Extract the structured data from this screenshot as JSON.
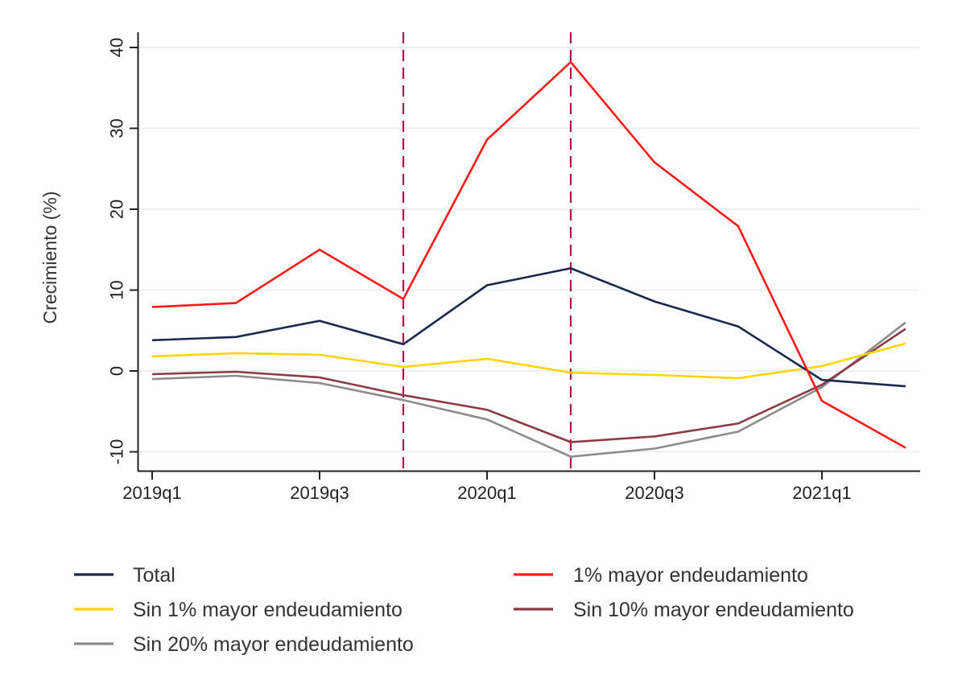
{
  "chart_data": {
    "type": "line",
    "title": "",
    "xlabel": "",
    "ylabel": "Crecimiento (%)",
    "x": [
      "2019q1",
      "2019q2",
      "2019q3",
      "2019q4",
      "2020q1",
      "2020q2",
      "2020q3",
      "2020q4",
      "2021q1",
      "2021q2"
    ],
    "x_tick_labels": [
      "2019q1",
      "2019q3",
      "2020q1",
      "2020q3",
      "2021q1"
    ],
    "y_ticks": [
      -10,
      0,
      10,
      20,
      30,
      40
    ],
    "ylim": [
      -12.4,
      41.7
    ],
    "grid": true,
    "vertical_reference_lines": {
      "at": [
        "2019q4",
        "2020q2"
      ],
      "style": "dashed",
      "color": "#b0164a"
    },
    "legend_position": "bottom",
    "series": [
      {
        "name": "Total",
        "color": "#1a2a4f",
        "values": [
          3.8,
          4.2,
          6.2,
          3.3,
          10.6,
          12.7,
          8.6,
          5.5,
          -1.1,
          -1.9
        ]
      },
      {
        "name": "1% mayor endeudamiento",
        "color": "#ff1a1a",
        "values": [
          7.9,
          8.4,
          15.0,
          8.9,
          28.6,
          38.2,
          25.8,
          17.9,
          -3.7,
          -9.5
        ]
      },
      {
        "name": "Sin 1% mayor endeudamiento",
        "color": "#ffd400",
        "values": [
          1.8,
          2.2,
          2.0,
          0.5,
          1.5,
          -0.2,
          -0.5,
          -0.9,
          0.6,
          3.4
        ]
      },
      {
        "name": "Sin 10% mayor endeudamiento",
        "color": "#8b3a46",
        "values": [
          -0.4,
          -0.1,
          -0.8,
          -3.0,
          -4.8,
          -8.8,
          -8.1,
          -6.5,
          -1.7,
          5.2
        ]
      },
      {
        "name": "Sin 20% mayor endeudamiento",
        "color": "#8c8c8c",
        "values": [
          -1.0,
          -0.6,
          -1.5,
          -3.6,
          -6.0,
          -10.6,
          -9.6,
          -7.5,
          -2.0,
          6.0
        ]
      }
    ]
  }
}
